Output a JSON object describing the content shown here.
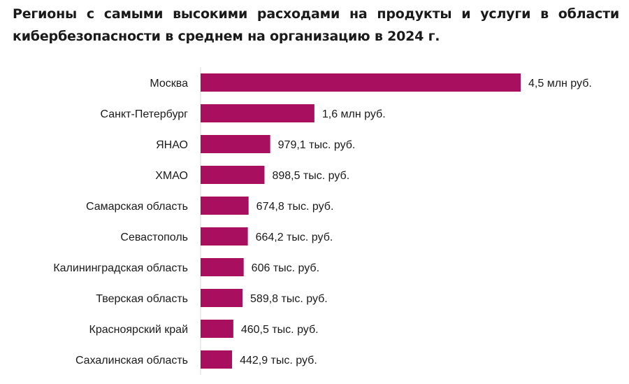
{
  "title_line1": "Регионы с самыми высокими расходами на продукты и услуги в области",
  "title_line2": "кибербезопасности в среднем на организацию в 2024 г.",
  "chart_data": {
    "type": "bar",
    "orientation": "horizontal",
    "title": "Регионы с самыми высокими расходами на продукты и услуги в области кибербезопасности в среднем на организацию в 2024 г.",
    "categories": [
      "Москва",
      "Санкт-Петербург",
      "ЯНАО",
      "ХМАО",
      "Самарская область",
      "Севастополь",
      "Калининградская область",
      "Тверская область",
      "Красноярский край",
      "Сахалинская область"
    ],
    "values": [
      4500,
      1600,
      979.1,
      898.5,
      674.8,
      664.2,
      606,
      589.8,
      460.5,
      442.9
    ],
    "unit": "тыс. руб.",
    "data_labels": [
      "4,5 млн руб.",
      "1,6 млн руб.",
      "979,1 тыс. руб.",
      "898,5 тыс. руб.",
      "674,8 тыс. руб.",
      "664,2 тыс. руб.",
      "606 тыс. руб.",
      "589,8 тыс. руб.",
      "460,5 тыс. руб.",
      "442,9 тыс. руб."
    ],
    "xlim": [
      0,
      4500
    ],
    "bar_color": "#a80f5e",
    "grid": false,
    "legend": "none"
  }
}
